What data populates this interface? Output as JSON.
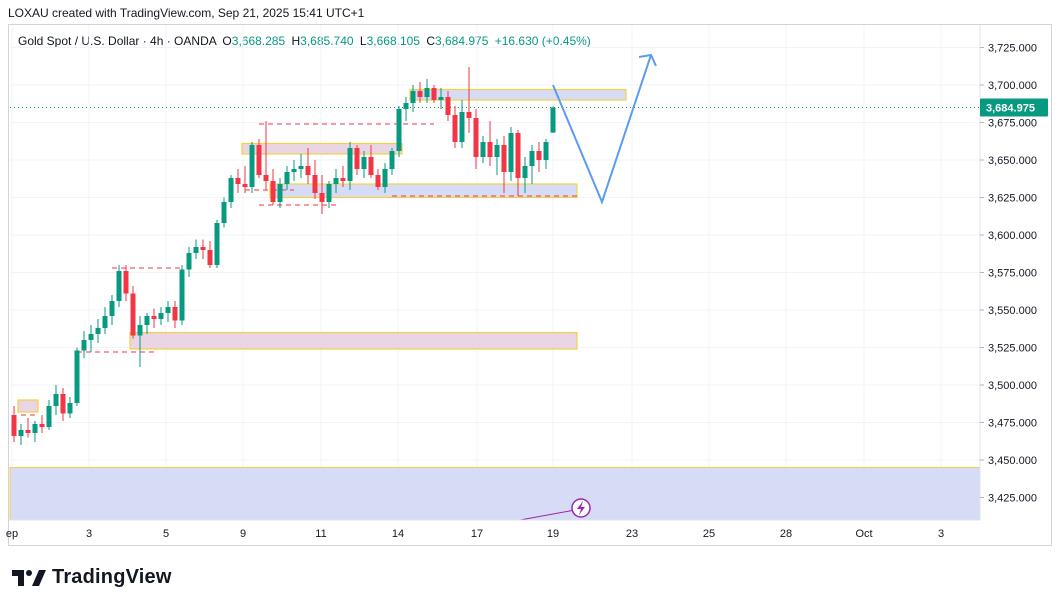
{
  "header": {
    "credit": "LOXAU created with TradingView.com, Sep 21, 2025 15:41 UTC+1"
  },
  "legend": {
    "symbol": "Gold Spot / U.S. Dollar · 4h · OANDA",
    "o_label": "O",
    "o_value": "3,668.285",
    "h_label": "H",
    "h_value": "3,685.740",
    "l_label": "L",
    "l_value": "3,668.105",
    "c_label": "C",
    "c_value": "3,684.975",
    "change": "+16.630 (+0.45%)"
  },
  "brand": {
    "name": "TradingView"
  },
  "colors": {
    "up": "#089981",
    "down": "#f23645",
    "zone_blue": "#d6dcf5",
    "zone_pink": "#ead5e4",
    "zone_border": "#f5d142",
    "projection": "#5b9cf0",
    "price_label": "#089981"
  },
  "chart_data": {
    "type": "candlestick",
    "ylim": [
      3410,
      3740
    ],
    "y_ticks": [
      "3,725.000",
      "3,700.000",
      "3,675.000",
      "3,650.000",
      "3,625.000",
      "3,600.000",
      "3,575.000",
      "3,550.000",
      "3,525.000",
      "3,500.000",
      "3,475.000",
      "3,450.000",
      "3,425.000"
    ],
    "y_tick_values": [
      3725,
      3700,
      3675,
      3650,
      3625,
      3600,
      3575,
      3550,
      3525,
      3500,
      3475,
      3450,
      3425
    ],
    "x_ticks": [
      "ep",
      "3",
      "5",
      "9",
      "11",
      "14",
      "17",
      "19",
      "23",
      "25",
      "28",
      "Oct",
      "3"
    ],
    "last_price": "3,684.975",
    "last_price_value": 3684.975,
    "candles": [
      [
        3480,
        3486,
        3462,
        3466
      ],
      [
        3466,
        3474,
        3460,
        3470
      ],
      [
        3470,
        3478,
        3465,
        3468
      ],
      [
        3468,
        3476,
        3462,
        3474
      ],
      [
        3474,
        3480,
        3468,
        3472
      ],
      [
        3472,
        3490,
        3470,
        3486
      ],
      [
        3486,
        3500,
        3480,
        3494
      ],
      [
        3494,
        3498,
        3476,
        3481
      ],
      [
        3481,
        3492,
        3478,
        3488
      ],
      [
        3488,
        3525,
        3486,
        3523
      ],
      [
        3523,
        3536,
        3518,
        3530
      ],
      [
        3530,
        3540,
        3522,
        3534
      ],
      [
        3534,
        3544,
        3528,
        3538
      ],
      [
        3538,
        3552,
        3534,
        3546
      ],
      [
        3546,
        3560,
        3540,
        3556
      ],
      [
        3556,
        3580,
        3552,
        3576
      ],
      [
        3576,
        3580,
        3556,
        3561
      ],
      [
        3561,
        3566,
        3531,
        3533
      ],
      [
        3533,
        3546,
        3512,
        3540
      ],
      [
        3540,
        3548,
        3534,
        3546
      ],
      [
        3546,
        3551,
        3538,
        3544
      ],
      [
        3544,
        3552,
        3540,
        3548
      ],
      [
        3548,
        3556,
        3542,
        3552
      ],
      [
        3552,
        3556,
        3538,
        3543
      ],
      [
        3543,
        3580,
        3540,
        3577
      ],
      [
        3577,
        3592,
        3572,
        3588
      ],
      [
        3588,
        3597,
        3584,
        3592
      ],
      [
        3592,
        3597,
        3584,
        3590
      ],
      [
        3590,
        3596,
        3578,
        3580
      ],
      [
        3580,
        3610,
        3578,
        3608
      ],
      [
        3608,
        3625,
        3605,
        3622
      ],
      [
        3622,
        3640,
        3618,
        3638
      ],
      [
        3638,
        3644,
        3628,
        3634
      ],
      [
        3634,
        3646,
        3628,
        3632
      ],
      [
        3632,
        3662,
        3628,
        3660
      ],
      [
        3660,
        3664,
        3638,
        3640
      ],
      [
        3640,
        3676,
        3630,
        3636
      ],
      [
        3636,
        3644,
        3620,
        3622
      ],
      [
        3622,
        3638,
        3618,
        3634
      ],
      [
        3634,
        3646,
        3630,
        3642
      ],
      [
        3642,
        3650,
        3636,
        3644
      ],
      [
        3644,
        3654,
        3638,
        3646
      ],
      [
        3646,
        3658,
        3634,
        3640
      ],
      [
        3640,
        3650,
        3624,
        3628
      ],
      [
        3628,
        3640,
        3614,
        3622
      ],
      [
        3622,
        3636,
        3618,
        3634
      ],
      [
        3634,
        3644,
        3628,
        3638
      ],
      [
        3638,
        3646,
        3632,
        3636
      ],
      [
        3636,
        3662,
        3630,
        3658
      ],
      [
        3658,
        3660,
        3640,
        3644
      ],
      [
        3644,
        3656,
        3638,
        3652
      ],
      [
        3652,
        3660,
        3638,
        3640
      ],
      [
        3640,
        3644,
        3630,
        3632
      ],
      [
        3632,
        3648,
        3628,
        3644
      ],
      [
        3644,
        3658,
        3640,
        3656
      ],
      [
        3656,
        3686,
        3652,
        3684
      ],
      [
        3684,
        3692,
        3676,
        3688
      ],
      [
        3688,
        3700,
        3682,
        3696
      ],
      [
        3696,
        3702,
        3688,
        3692
      ],
      [
        3692,
        3704,
        3688,
        3698
      ],
      [
        3698,
        3700,
        3688,
        3690
      ],
      [
        3690,
        3698,
        3684,
        3692
      ],
      [
        3692,
        3696,
        3676,
        3680
      ],
      [
        3680,
        3686,
        3658,
        3662
      ],
      [
        3662,
        3690,
        3658,
        3682
      ],
      [
        3682,
        3712,
        3668,
        3678
      ],
      [
        3678,
        3684,
        3644,
        3652
      ],
      [
        3652,
        3666,
        3648,
        3662
      ],
      [
        3662,
        3676,
        3646,
        3652
      ],
      [
        3652,
        3664,
        3640,
        3660
      ],
      [
        3660,
        3666,
        3628,
        3642
      ],
      [
        3642,
        3672,
        3636,
        3668
      ],
      [
        3668,
        3670,
        3626,
        3638
      ],
      [
        3638,
        3652,
        3628,
        3646
      ],
      [
        3646,
        3660,
        3634,
        3656
      ],
      [
        3656,
        3662,
        3642,
        3650
      ],
      [
        3650,
        3664,
        3644,
        3662
      ],
      [
        3668.285,
        3685.74,
        3668.105,
        3684.975
      ]
    ],
    "zones": [
      {
        "from_candle": 1,
        "to_candle": 3,
        "top": 3490,
        "bottom": 3482,
        "fill": "pink"
      },
      {
        "from_candle": 17,
        "to_candle": 80,
        "top": 3535,
        "bottom": 3524,
        "fill": "pink"
      },
      {
        "from_candle": 33,
        "to_candle": 55,
        "top": 3661,
        "bottom": 3654,
        "fill": "pink"
      },
      {
        "from_candle": 37,
        "to_candle": 80,
        "top": 3634,
        "bottom": 3625,
        "fill": "blue"
      },
      {
        "from_candle": 57,
        "to_candle": 87,
        "top": 3697,
        "bottom": 3690,
        "fill": "blue"
      }
    ],
    "projection": [
      [
        77,
        3700
      ],
      [
        84,
        3622
      ],
      [
        91,
        3720
      ]
    ]
  }
}
